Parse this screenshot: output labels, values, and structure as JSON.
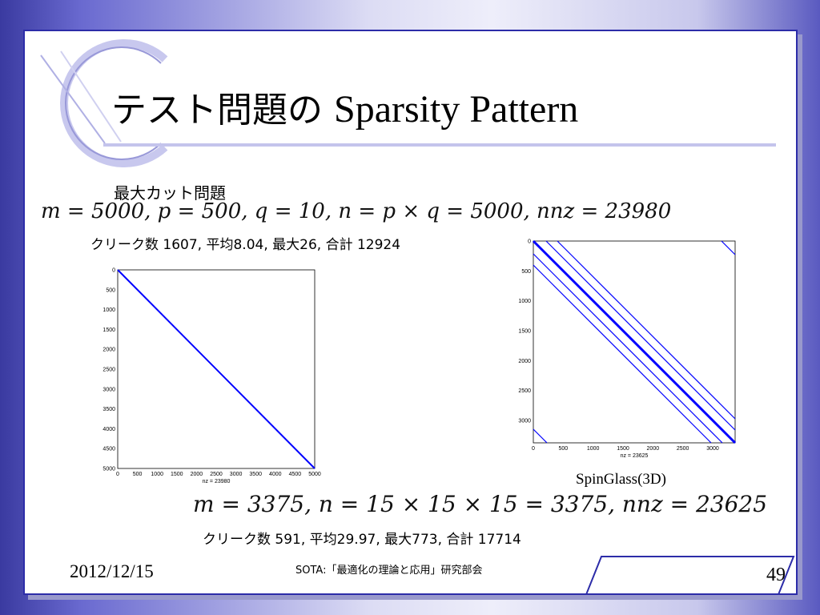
{
  "slide": {
    "title_jp": "テスト問題の",
    "title_en": "Sparsity Pattern",
    "maxcut_heading": "最大カット問題",
    "maxcut_formula": "m = 5000, p = 500, q = 10, n = p × q = 5000, nnz = 23980",
    "maxcut_stats": "クリーク数 1607, 平均8.04, 最大26, 合計 12924",
    "spinglass_caption": "SpinGlass(3D)",
    "spinglass_formula": "m = 3375, n = 15 × 15 × 15 = 3375, nnz = 23625",
    "spinglass_stats": "クリーク数 591, 平均29.97, 最大773, 合計 17714"
  },
  "plot_left": {
    "xlabel": "nz = 23980",
    "xticks": [
      "0",
      "500",
      "1000",
      "1500",
      "2000",
      "2500",
      "3000",
      "3500",
      "4000",
      "4500",
      "5000"
    ],
    "yticks": [
      "0",
      "500",
      "1000",
      "1500",
      "2000",
      "2500",
      "3000",
      "3500",
      "4000",
      "4500",
      "5000"
    ]
  },
  "plot_right": {
    "xlabel": "nz = 23625",
    "xticks": [
      "0",
      "500",
      "1000",
      "1500",
      "2000",
      "2500",
      "3000"
    ],
    "yticks": [
      "0",
      "500",
      "1000",
      "1500",
      "2000",
      "2500",
      "3000"
    ]
  },
  "footer": {
    "date": "2012/12/15",
    "center": "SOTA:「最適化の理論と応用」研究部会",
    "page_number": "49"
  },
  "colors": {
    "accent": "#2c2ca8",
    "plot_line": "#0000ff"
  }
}
